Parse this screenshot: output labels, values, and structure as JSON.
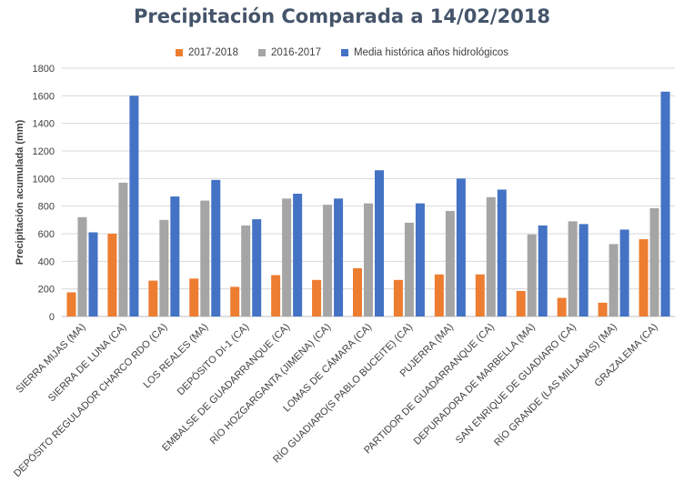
{
  "chart_data": {
    "type": "bar",
    "title": "Precipitación Comparada a 14/02/2018",
    "xlabel": "",
    "ylabel": "Precipitación acumulada (mm)",
    "ylim": [
      0,
      1800
    ],
    "yticks": [
      0,
      200,
      400,
      600,
      800,
      1000,
      1200,
      1400,
      1600,
      1800
    ],
    "grid": true,
    "legend_position": "top",
    "categories": [
      "SIERRA MIJAS (MA)",
      "SIERRA DE LUNA (CA)",
      "DEPÓSITO REGULADOR CHARCO RDO (CA)",
      "LOS REALES (MA)",
      "DEPÓSITO DI-1 (CA)",
      "EMBALSE DE GUADARRANQUE (CA)",
      "RÍO HOZGARGANTA (JIMENA) (CA)",
      "LOMAS DE CÁMARA (CA)",
      "RÍO GUADIARO(S PABLO BUCEITE) (CA)",
      "PUJERRA (MA)",
      "PARTIDOR DE GUADARRANQUE (CA)",
      "DEPURADORA DE MARBELLA (MA)",
      "SAN ENRIQUE DE GUADIARO (CA)",
      "RÍO GRANDE (LAS MILLANAS) (MA)",
      "GRAZALEMA (CA)"
    ],
    "series": [
      {
        "name": "2017-2018",
        "color": "#ed7d31",
        "values": [
          175,
          600,
          260,
          275,
          215,
          300,
          265,
          350,
          265,
          305,
          305,
          185,
          135,
          100,
          560
        ]
      },
      {
        "name": "2016-2017",
        "color": "#a5a5a5",
        "values": [
          720,
          970,
          700,
          840,
          660,
          855,
          810,
          820,
          680,
          765,
          865,
          595,
          690,
          525,
          785
        ]
      },
      {
        "name": "Media histórica años hidrológicos",
        "color": "#4472c4",
        "values": [
          610,
          1600,
          870,
          990,
          705,
          890,
          855,
          1060,
          820,
          1000,
          920,
          660,
          670,
          630,
          1630
        ]
      }
    ]
  }
}
